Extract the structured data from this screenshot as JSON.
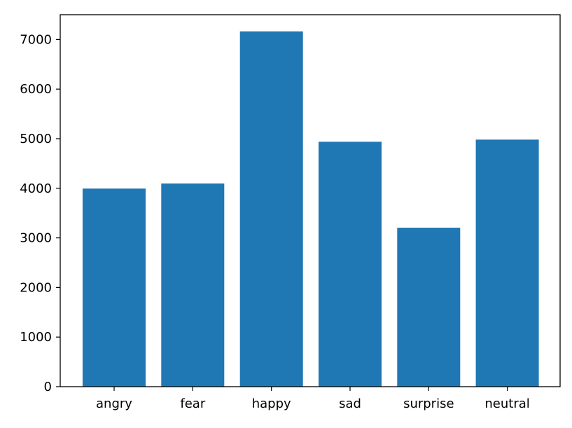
{
  "chart_data": {
    "type": "bar",
    "title": "",
    "xlabel": "",
    "ylabel": "",
    "categories": [
      "angry",
      "fear",
      "happy",
      "sad",
      "surprise",
      "neutral"
    ],
    "values": [
      3995,
      4097,
      7164,
      4938,
      3205,
      4982
    ],
    "ylim": [
      0,
      7500
    ],
    "yticks": [
      0,
      1000,
      2000,
      3000,
      4000,
      5000,
      6000,
      7000
    ],
    "ytick_labels": [
      "0",
      "1000",
      "2000",
      "3000",
      "4000",
      "5000",
      "6000",
      "7000"
    ],
    "bar_color": "#1f77b4",
    "grid": false,
    "legend": "none"
  }
}
